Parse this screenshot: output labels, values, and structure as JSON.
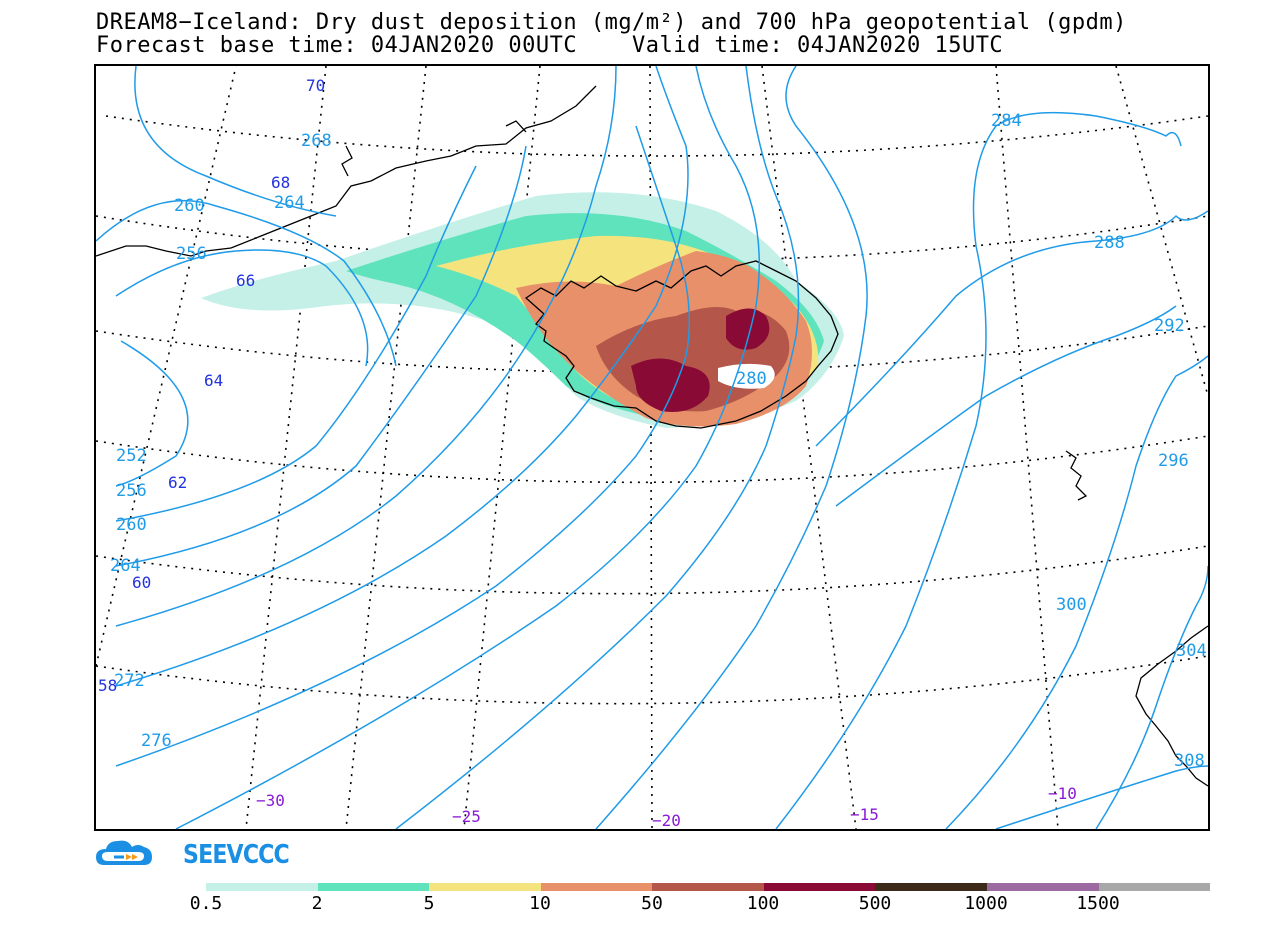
{
  "title_line1": "DREAM8−Iceland: Dry dust deposition (mg/m²) and 700 hPa geopotential (gpdm)",
  "title_line2": "Forecast base time: 04JAN2020 00UTC    Valid time: 04JAN2020 15UTC",
  "colors": {
    "contour": "#1f9be8",
    "lat_label": "#2233dd",
    "lon_label": "#8a1ad6",
    "coast": "#000000",
    "dust_levels": [
      "#c4f0e8",
      "#5fe3bd",
      "#f5e47e",
      "#e8906a",
      "#b4574a",
      "#880a35",
      "#3d2a18",
      "#9a6aa0",
      "#a8a8a8"
    ]
  },
  "contour_labels": [
    "70",
    "268",
    "68",
    "264",
    "260",
    "256",
    "66",
    "64",
    "252",
    "256",
    "62",
    "260",
    "264",
    "60",
    "272",
    "58",
    "276",
    "280",
    "284",
    "288",
    "292",
    "296",
    "300",
    "304",
    "308",
    "280"
  ],
  "lat_labels": [
    "70",
    "68",
    "66",
    "64",
    "62",
    "60",
    "58"
  ],
  "lon_labels": [
    "−30",
    "−25",
    "−20",
    "−15",
    "−10"
  ],
  "logo_text": "SEEVCCC",
  "colorbar": {
    "labels": [
      "0.5",
      "2",
      "5",
      "10",
      "50",
      "100",
      "500",
      "1000",
      "1500"
    ]
  }
}
